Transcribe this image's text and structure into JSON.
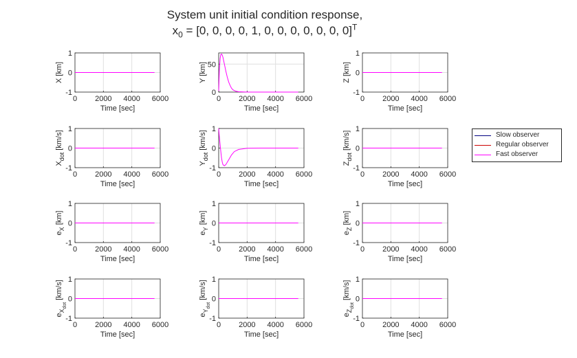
{
  "figure": {
    "title_line1": "System unit initial condition response,",
    "title_line2_prefix": "x",
    "title_line2_sub": "0",
    "title_line2_mid": " = [0, 0, 0, 0, 1, 0, 0, 0, 0, 0, 0, 0]",
    "title_line2_sup": "T"
  },
  "legend": {
    "items": [
      {
        "label": "Slow observer",
        "color": "#000080"
      },
      {
        "label": "Regular observer",
        "color": "#cc0000"
      },
      {
        "label": "Fast observer",
        "color": "#ff00ff"
      }
    ]
  },
  "colors": {
    "axes": "#262626",
    "grid": "#dfdfdf",
    "fast": "#ff00ff"
  },
  "chart_data": [
    {
      "type": "line",
      "xlabel": "Time [sec]",
      "ylabel_main": "X",
      "ylabel_sub": "",
      "ylabel_subsub": "",
      "ylabel_unit": "[km]",
      "xlim": [
        0,
        6000
      ],
      "ylim": [
        -1,
        1
      ],
      "xticks": [
        "0",
        "2000",
        "4000",
        "6000"
      ],
      "yticks": [
        "-1",
        "0",
        "1"
      ],
      "grid": true,
      "series": [
        {
          "name": "Fast observer",
          "x": [
            0,
            5600
          ],
          "y": [
            0,
            0
          ]
        }
      ]
    },
    {
      "type": "line",
      "xlabel": "Time [sec]",
      "ylabel_main": "Y",
      "ylabel_sub": "",
      "ylabel_subsub": "",
      "ylabel_unit": "[km]",
      "xlim": [
        0,
        6000
      ],
      "ylim": [
        0,
        70
      ],
      "xticks": [
        "0",
        "2000",
        "4000",
        "6000"
      ],
      "yticks": [
        "0",
        "50"
      ],
      "grid": true,
      "series": [
        {
          "name": "Fast observer",
          "x": [
            0,
            50,
            100,
            150,
            200,
            250,
            300,
            350,
            400,
            500,
            600,
            700,
            800,
            900,
            1000,
            1200,
            1400,
            1700,
            2000,
            3000,
            4000,
            5600
          ],
          "y": [
            2,
            40,
            60,
            67,
            68,
            66,
            62,
            56,
            50,
            38,
            27,
            18,
            12,
            7,
            4,
            1.5,
            0.6,
            0.2,
            0,
            0,
            0,
            0
          ]
        }
      ]
    },
    {
      "type": "line",
      "xlabel": "Time [sec]",
      "ylabel_main": "Z",
      "ylabel_sub": "",
      "ylabel_subsub": "",
      "ylabel_unit": "[km]",
      "xlim": [
        0,
        6000
      ],
      "ylim": [
        -1,
        1
      ],
      "xticks": [
        "0",
        "2000",
        "4000",
        "6000"
      ],
      "yticks": [
        "-1",
        "0",
        "1"
      ],
      "grid": true,
      "series": [
        {
          "name": "Fast observer",
          "x": [
            0,
            5600
          ],
          "y": [
            0,
            0
          ]
        }
      ]
    },
    {
      "type": "line",
      "xlabel": "Time [sec]",
      "ylabel_main": "X",
      "ylabel_sub": "dot",
      "ylabel_subsub": "",
      "ylabel_unit": "[km/s]",
      "xlim": [
        0,
        6000
      ],
      "ylim": [
        -1,
        1
      ],
      "xticks": [
        "0",
        "2000",
        "4000",
        "6000"
      ],
      "yticks": [
        "-1",
        "0",
        "1"
      ],
      "grid": true,
      "series": [
        {
          "name": "Fast observer",
          "x": [
            0,
            5600
          ],
          "y": [
            0,
            0
          ]
        }
      ]
    },
    {
      "type": "line",
      "xlabel": "Time [sec]",
      "ylabel_main": "Y",
      "ylabel_sub": "dot",
      "ylabel_subsub": "",
      "ylabel_unit": "[km/s]",
      "xlim": [
        0,
        6000
      ],
      "ylim": [
        -1,
        1
      ],
      "xticks": [
        "0",
        "2000",
        "4000",
        "6000"
      ],
      "yticks": [
        "-1",
        "0",
        "1"
      ],
      "grid": true,
      "series": [
        {
          "name": "Fast observer",
          "x": [
            0,
            40,
            80,
            120,
            160,
            200,
            250,
            300,
            400,
            500,
            700,
            900,
            1100,
            1400,
            2000,
            3000,
            4000,
            5600
          ],
          "y": [
            1,
            0.65,
            0.3,
            0.02,
            -0.25,
            -0.5,
            -0.72,
            -0.85,
            -0.9,
            -0.85,
            -0.6,
            -0.35,
            -0.18,
            -0.07,
            -0.01,
            0,
            0,
            0
          ]
        }
      ]
    },
    {
      "type": "line",
      "xlabel": "Time [sec]",
      "ylabel_main": "Z",
      "ylabel_sub": "dot",
      "ylabel_subsub": "",
      "ylabel_unit": "[km/s]",
      "xlim": [
        0,
        6000
      ],
      "ylim": [
        -1,
        1
      ],
      "xticks": [
        "0",
        "2000",
        "4000",
        "6000"
      ],
      "yticks": [
        "-1",
        "0",
        "1"
      ],
      "grid": true,
      "series": [
        {
          "name": "Fast observer",
          "x": [
            0,
            5600
          ],
          "y": [
            0,
            0
          ]
        }
      ]
    },
    {
      "type": "line",
      "xlabel": "Time [sec]",
      "ylabel_main": "e",
      "ylabel_sub": "X",
      "ylabel_subsub": "",
      "ylabel_unit": "[km]",
      "xlim": [
        0,
        6000
      ],
      "ylim": [
        -1,
        1
      ],
      "xticks": [
        "0",
        "2000",
        "4000",
        "6000"
      ],
      "yticks": [
        "-1",
        "0",
        "1"
      ],
      "grid": true,
      "series": [
        {
          "name": "Fast observer",
          "x": [
            0,
            5600
          ],
          "y": [
            0,
            0
          ]
        }
      ]
    },
    {
      "type": "line",
      "xlabel": "Time [sec]",
      "ylabel_main": "e",
      "ylabel_sub": "Y",
      "ylabel_subsub": "",
      "ylabel_unit": "[km]",
      "xlim": [
        0,
        6000
      ],
      "ylim": [
        -1,
        1
      ],
      "xticks": [
        "0",
        "2000",
        "4000",
        "6000"
      ],
      "yticks": [
        "-1",
        "0",
        "1"
      ],
      "grid": true,
      "series": [
        {
          "name": "Fast observer",
          "x": [
            0,
            5600
          ],
          "y": [
            0,
            0
          ]
        }
      ]
    },
    {
      "type": "line",
      "xlabel": "Time [sec]",
      "ylabel_main": "e",
      "ylabel_sub": "Z",
      "ylabel_subsub": "",
      "ylabel_unit": "[km]",
      "xlim": [
        0,
        6000
      ],
      "ylim": [
        -1,
        1
      ],
      "xticks": [
        "0",
        "2000",
        "4000",
        "6000"
      ],
      "yticks": [
        "-1",
        "0",
        "1"
      ],
      "grid": true,
      "series": [
        {
          "name": "Fast observer",
          "x": [
            0,
            5600
          ],
          "y": [
            0,
            0
          ]
        }
      ]
    },
    {
      "type": "line",
      "xlabel": "Time [sec]",
      "ylabel_main": "e",
      "ylabel_sub": "X",
      "ylabel_subsub": "dot",
      "ylabel_unit": "[km/s]",
      "xlim": [
        0,
        6000
      ],
      "ylim": [
        -1,
        1
      ],
      "xticks": [
        "0",
        "2000",
        "4000",
        "6000"
      ],
      "yticks": [
        "-1",
        "0",
        "1"
      ],
      "grid": true,
      "series": [
        {
          "name": "Fast observer",
          "x": [
            0,
            5600
          ],
          "y": [
            0,
            0
          ]
        }
      ]
    },
    {
      "type": "line",
      "xlabel": "Time [sec]",
      "ylabel_main": "e",
      "ylabel_sub": "Y",
      "ylabel_subsub": "dot",
      "ylabel_unit": "[km/s]",
      "xlim": [
        0,
        6000
      ],
      "ylim": [
        -1,
        1
      ],
      "xticks": [
        "0",
        "2000",
        "4000",
        "6000"
      ],
      "yticks": [
        "-1",
        "0",
        "1"
      ],
      "grid": true,
      "series": [
        {
          "name": "Fast observer",
          "x": [
            0,
            5600
          ],
          "y": [
            0,
            0
          ]
        }
      ]
    },
    {
      "type": "line",
      "xlabel": "Time [sec]",
      "ylabel_main": "e",
      "ylabel_sub": "Z",
      "ylabel_subsub": "dot",
      "ylabel_unit": "[km/s]",
      "xlim": [
        0,
        6000
      ],
      "ylim": [
        -1,
        1
      ],
      "xticks": [
        "0",
        "2000",
        "4000",
        "6000"
      ],
      "yticks": [
        "-1",
        "0",
        "1"
      ],
      "grid": true,
      "series": [
        {
          "name": "Fast observer",
          "x": [
            0,
            5600
          ],
          "y": [
            0,
            0
          ]
        }
      ]
    }
  ]
}
